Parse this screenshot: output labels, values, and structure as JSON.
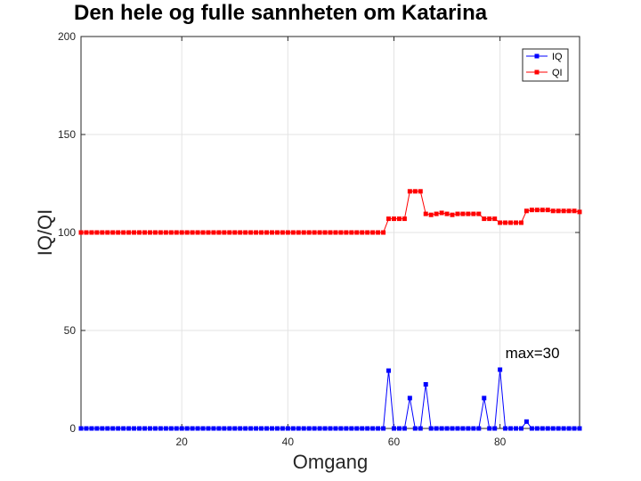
{
  "chart_data": {
    "type": "line",
    "title": "Den hele og fulle sannheten om Katarina",
    "xlabel": "Omgang",
    "ylabel": "IQ/QI",
    "xlim": [
      1,
      95
    ],
    "ylim": [
      0,
      200
    ],
    "xticks": [
      20,
      40,
      60,
      80
    ],
    "yticks": [
      0,
      50,
      100,
      150,
      200
    ],
    "grid": true,
    "legend_position": "top-right",
    "annotation": {
      "text": "max=30",
      "x": 81,
      "y": 36
    },
    "x": [
      1,
      2,
      3,
      4,
      5,
      6,
      7,
      8,
      9,
      10,
      11,
      12,
      13,
      14,
      15,
      16,
      17,
      18,
      19,
      20,
      21,
      22,
      23,
      24,
      25,
      26,
      27,
      28,
      29,
      30,
      31,
      32,
      33,
      34,
      35,
      36,
      37,
      38,
      39,
      40,
      41,
      42,
      43,
      44,
      45,
      46,
      47,
      48,
      49,
      50,
      51,
      52,
      53,
      54,
      55,
      56,
      57,
      58,
      59,
      60,
      61,
      62,
      63,
      64,
      65,
      66,
      67,
      68,
      69,
      70,
      71,
      72,
      73,
      74,
      75,
      76,
      77,
      78,
      79,
      80,
      81,
      82,
      83,
      84,
      85,
      86,
      87,
      88,
      89,
      90,
      91,
      92,
      93,
      94,
      95
    ],
    "series": [
      {
        "name": "IQ",
        "color": "#0000ff",
        "values": [
          0,
          0,
          0,
          0,
          0,
          0,
          0,
          0,
          0,
          0,
          0,
          0,
          0,
          0,
          0,
          0,
          0,
          0,
          0,
          0,
          0,
          0,
          0,
          0,
          0,
          0,
          0,
          0,
          0,
          0,
          0,
          0,
          0,
          0,
          0,
          0,
          0,
          0,
          0,
          0,
          0,
          0,
          0,
          0,
          0,
          0,
          0,
          0,
          0,
          0,
          0,
          0,
          0,
          0,
          0,
          0,
          0,
          0,
          29.5,
          0,
          0,
          0,
          15.5,
          0,
          0,
          22.5,
          0,
          0,
          0,
          0,
          0,
          0,
          0,
          0,
          0,
          0,
          15.5,
          0,
          0,
          30,
          0,
          0,
          0,
          0,
          3.5,
          0,
          0,
          0,
          0,
          0,
          0,
          0,
          0,
          0,
          0
        ]
      },
      {
        "name": "QI",
        "color": "#ff0000",
        "values": [
          100,
          100,
          100,
          100,
          100,
          100,
          100,
          100,
          100,
          100,
          100,
          100,
          100,
          100,
          100,
          100,
          100,
          100,
          100,
          100,
          100,
          100,
          100,
          100,
          100,
          100,
          100,
          100,
          100,
          100,
          100,
          100,
          100,
          100,
          100,
          100,
          100,
          100,
          100,
          100,
          100,
          100,
          100,
          100,
          100,
          100,
          100,
          100,
          100,
          100,
          100,
          100,
          100,
          100,
          100,
          100,
          100,
          100,
          107,
          107,
          107,
          107,
          121,
          121,
          121,
          109.5,
          109,
          109.5,
          110,
          109.5,
          109,
          109.5,
          109.5,
          109.5,
          109.5,
          109.5,
          107,
          107,
          107,
          105,
          105,
          105,
          105,
          105,
          111,
          111.5,
          111.5,
          111.5,
          111.5,
          111,
          111,
          111,
          111,
          111,
          110.5
        ]
      }
    ]
  }
}
